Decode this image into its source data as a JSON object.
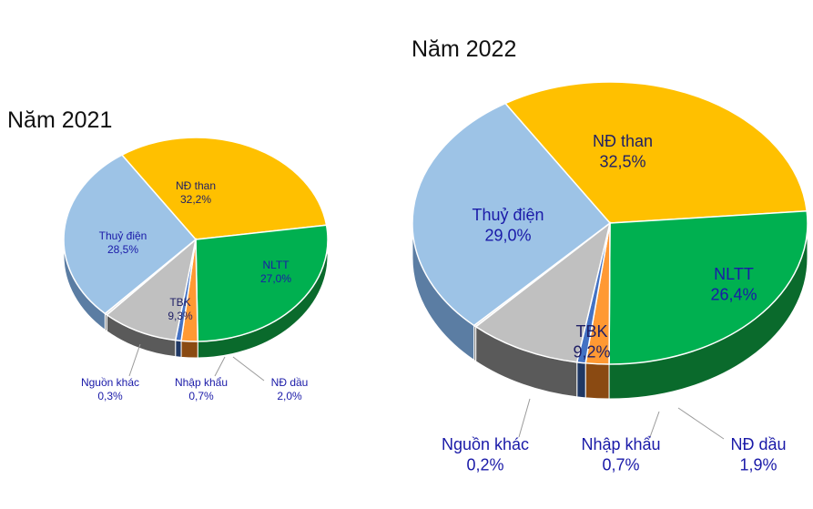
{
  "chart_data": [
    {
      "type": "pie",
      "title": "Năm 2021",
      "slices": [
        {
          "name": "NĐ than",
          "value": 32.2,
          "label": "32,2%",
          "color": "#ffc000",
          "side": "#b88a00"
        },
        {
          "name": "NLTT",
          "value": 27.0,
          "label": "27,0%",
          "color": "#00b050",
          "side": "#0a6a2c"
        },
        {
          "name": "NĐ dầu",
          "value": 2.0,
          "label": "2,0%",
          "color": "#ff9933",
          "side": "#8a4a12"
        },
        {
          "name": "Nhập khẩu",
          "value": 0.7,
          "label": "0,7%",
          "color": "#4472c4",
          "side": "#1f3864"
        },
        {
          "name": "TBK",
          "value": 9.3,
          "label": "9,3%",
          "color": "#c0c0c0",
          "side": "#5a5a5a"
        },
        {
          "name": "Nguồn khác",
          "value": 0.3,
          "label": "0,3%",
          "color": "#dddddd",
          "side": "#6a6a6a"
        },
        {
          "name": "Thuỷ điện",
          "value": 28.5,
          "label": "28,5%",
          "color": "#9dc3e6",
          "side": "#5b7da3"
        }
      ]
    },
    {
      "type": "pie",
      "title": "Năm 2022",
      "slices": [
        {
          "name": "NĐ than",
          "value": 32.5,
          "label": "32,5%",
          "color": "#ffc000",
          "side": "#b88a00"
        },
        {
          "name": "NLTT",
          "value": 26.4,
          "label": "26,4%",
          "color": "#00b050",
          "side": "#0a6a2c"
        },
        {
          "name": "NĐ dầu",
          "value": 1.9,
          "label": "1,9%",
          "color": "#ff9933",
          "side": "#8a4a12"
        },
        {
          "name": "Nhập khẩu",
          "value": 0.7,
          "label": "0,7%",
          "color": "#4472c4",
          "side": "#1f3864"
        },
        {
          "name": "TBK",
          "value": 9.2,
          "label": "9,2%",
          "color": "#c0c0c0",
          "side": "#5a5a5a"
        },
        {
          "name": "Nguồn khác",
          "value": 0.2,
          "label": "0,2%",
          "color": "#dddddd",
          "side": "#6a6a6a"
        },
        {
          "name": "Thuỷ điện",
          "value": 29.0,
          "label": "29,0%",
          "color": "#9dc3e6",
          "side": "#5b7da3"
        }
      ]
    }
  ]
}
